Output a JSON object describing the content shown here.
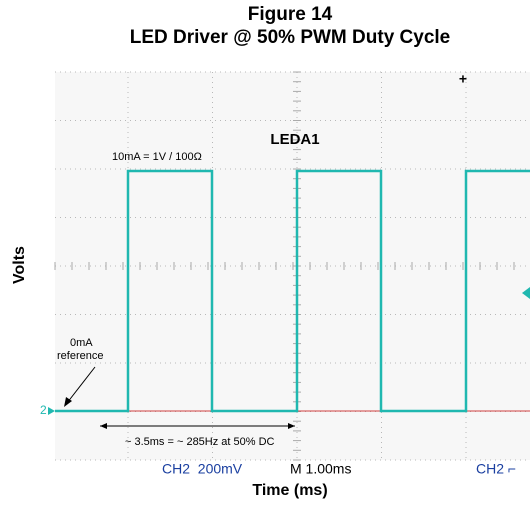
{
  "figure": {
    "number": "Figure 14",
    "title": "LED Driver @ 50% PWM Duty Cycle",
    "y_label": "Volts",
    "x_label": "Time (ms)",
    "trace_label": "LEDA1",
    "scale_note": "10mA = 1V / 100Ω",
    "reference_label": [
      "0mA",
      "reference"
    ],
    "channel_marker": "2",
    "period_note": "~ 3.5ms = ~ 285Hz at 50% DC",
    "status_bar": {
      "channel": "CH2  200mV",
      "timebase": "M 1.00ms",
      "trigger": "CH2 ⌐"
    }
  }
}
